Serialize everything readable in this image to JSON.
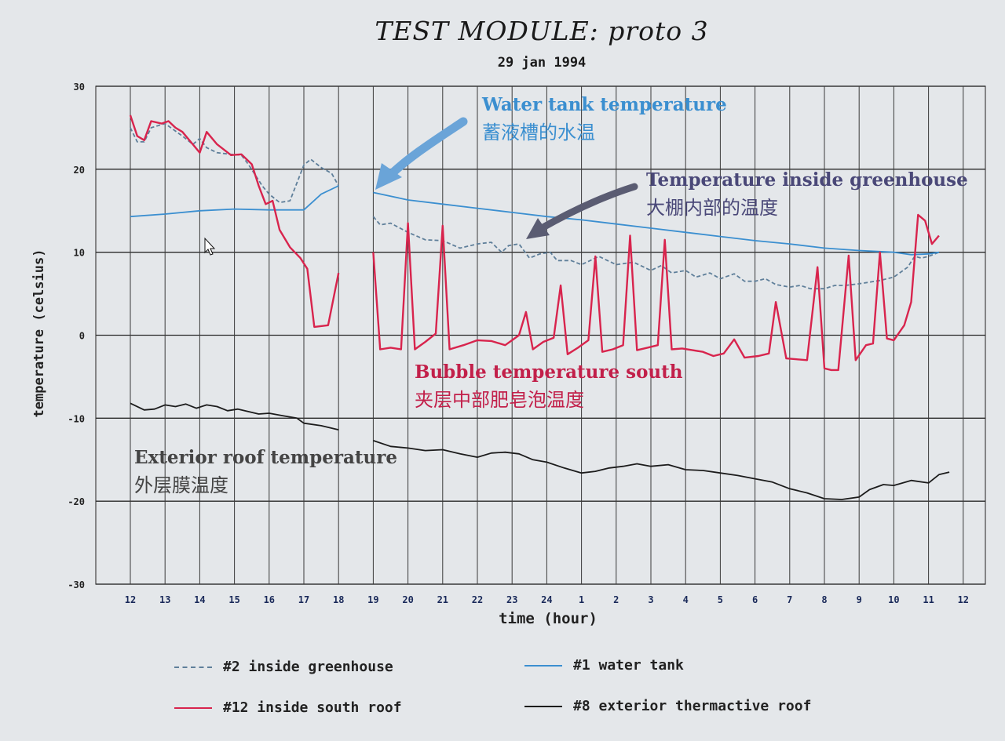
{
  "chart_data": {
    "type": "line",
    "title": "TEST MODULE: proto 3",
    "subtitle": "29 jan 1994",
    "xlabel": "time (hour)",
    "ylabel": "temperature (celsius)",
    "x_ticks": [
      "12",
      "13",
      "14",
      "15",
      "16",
      "17",
      "18",
      "19",
      "20",
      "21",
      "22",
      "23",
      "24",
      "1",
      "2",
      "3",
      "4",
      "5",
      "6",
      "7",
      "8",
      "9",
      "10",
      "11",
      "12"
    ],
    "y_ticks": [
      30,
      20,
      10,
      0,
      -10,
      -20,
      -30
    ],
    "ylim": [
      -30,
      30
    ],
    "grid": true,
    "legend_position": "bottom",
    "series": [
      {
        "name": "#2 inside greenhouse",
        "color": "#5f7f9a",
        "dash": true,
        "segments": [
          [
            [
              0,
              25
            ],
            [
              0.2,
              23.3
            ],
            [
              0.4,
              23.3
            ],
            [
              0.6,
              25
            ],
            [
              1,
              25.5
            ],
            [
              1.5,
              24
            ],
            [
              1.8,
              23
            ],
            [
              2,
              23.7
            ],
            [
              2.2,
              22.6
            ],
            [
              2.5,
              22
            ],
            [
              2.9,
              21.8
            ],
            [
              3.2,
              21.7
            ],
            [
              3.4,
              20.6
            ],
            [
              3.8,
              18
            ],
            [
              4,
              17
            ],
            [
              4.3,
              16
            ],
            [
              4.6,
              16.2
            ],
            [
              5,
              20.5
            ],
            [
              5.2,
              21.2
            ],
            [
              5.5,
              20.2
            ],
            [
              5.8,
              19.5
            ],
            [
              6,
              18
            ]
          ],
          [
            [
              7,
              14.3
            ],
            [
              7.2,
              13.3
            ],
            [
              7.5,
              13.5
            ],
            [
              8,
              12.4
            ],
            [
              8.5,
              11.5
            ],
            [
              9,
              11.4
            ],
            [
              9.5,
              10.5
            ],
            [
              10,
              11
            ],
            [
              10.4,
              11.2
            ],
            [
              10.7,
              10
            ],
            [
              10.9,
              10.8
            ],
            [
              11.2,
              11
            ],
            [
              11.5,
              9.3
            ],
            [
              11.8,
              9.8
            ],
            [
              12.1,
              10
            ],
            [
              12.3,
              9
            ],
            [
              12.7,
              9
            ],
            [
              13,
              8.5
            ],
            [
              13.5,
              9.5
            ],
            [
              14,
              8.5
            ],
            [
              14.5,
              8.8
            ],
            [
              15,
              7.8
            ],
            [
              15.3,
              8.4
            ],
            [
              15.6,
              7.5
            ],
            [
              16,
              7.8
            ],
            [
              16.3,
              7
            ],
            [
              16.7,
              7.5
            ],
            [
              17,
              6.8
            ],
            [
              17.4,
              7.4
            ],
            [
              17.7,
              6.5
            ],
            [
              18,
              6.5
            ],
            [
              18.3,
              6.8
            ],
            [
              18.6,
              6.1
            ],
            [
              19,
              5.8
            ],
            [
              19.3,
              6
            ],
            [
              19.6,
              5.6
            ],
            [
              20,
              5.6
            ],
            [
              20.3,
              6
            ],
            [
              20.6,
              6
            ],
            [
              21,
              6.2
            ],
            [
              21.3,
              6.4
            ],
            [
              21.6,
              6.6
            ],
            [
              22,
              7
            ],
            [
              22.4,
              8.2
            ],
            [
              22.6,
              9.5
            ],
            [
              22.8,
              9.3
            ],
            [
              23,
              9.5
            ],
            [
              23.3,
              10
            ]
          ]
        ]
      },
      {
        "name": "#1 water tank",
        "color": "#3b8fd0",
        "dash": false,
        "segments": [
          [
            [
              0,
              14.3
            ],
            [
              1,
              14.6
            ],
            [
              2,
              15
            ],
            [
              3,
              15.2
            ],
            [
              4,
              15.1
            ],
            [
              5,
              15.1
            ],
            [
              5.5,
              17
            ],
            [
              6,
              18
            ]
          ],
          [
            [
              7,
              17.2
            ],
            [
              8,
              16.3
            ],
            [
              9,
              15.8
            ],
            [
              10,
              15.3
            ],
            [
              11,
              14.8
            ],
            [
              12,
              14.3
            ],
            [
              13,
              13.9
            ],
            [
              14,
              13.4
            ],
            [
              15,
              12.9
            ],
            [
              16,
              12.4
            ],
            [
              17,
              11.9
            ],
            [
              18,
              11.4
            ],
            [
              19,
              11
            ],
            [
              20,
              10.5
            ],
            [
              21,
              10.2
            ],
            [
              22,
              10
            ],
            [
              22.5,
              9.7
            ],
            [
              23,
              9.8
            ],
            [
              23.3,
              10
            ]
          ]
        ]
      },
      {
        "name": "#12 inside south roof",
        "color": "#d8244d",
        "dash": false,
        "segments": [
          [
            [
              0,
              26.5
            ],
            [
              0.2,
              24
            ],
            [
              0.4,
              23.5
            ],
            [
              0.6,
              25.8
            ],
            [
              0.9,
              25.5
            ],
            [
              1.1,
              25.8
            ],
            [
              1.3,
              25
            ],
            [
              1.5,
              24.5
            ],
            [
              1.8,
              23
            ],
            [
              2,
              22
            ],
            [
              2.2,
              24.5
            ],
            [
              2.5,
              23
            ],
            [
              2.9,
              21.7
            ],
            [
              3.2,
              21.8
            ],
            [
              3.5,
              20.6
            ],
            [
              3.7,
              18
            ],
            [
              3.9,
              15.8
            ],
            [
              4.1,
              16.2
            ],
            [
              4.3,
              12.7
            ],
            [
              4.6,
              10.6
            ],
            [
              4.9,
              9.3
            ],
            [
              5.1,
              8
            ],
            [
              5.3,
              1
            ],
            [
              5.7,
              1.2
            ],
            [
              6,
              7.5
            ]
          ],
          [
            [
              7,
              10
            ],
            [
              7.2,
              -1.7
            ],
            [
              7.5,
              -1.5
            ],
            [
              7.8,
              -1.7
            ],
            [
              8,
              13.5
            ],
            [
              8.2,
              -1.7
            ],
            [
              8.5,
              -0.8
            ],
            [
              8.8,
              0.2
            ],
            [
              9,
              13.2
            ],
            [
              9.2,
              -1.7
            ],
            [
              9.6,
              -1.2
            ],
            [
              10,
              -0.6
            ],
            [
              10.4,
              -0.7
            ],
            [
              10.8,
              -1.2
            ],
            [
              11,
              -0.6
            ],
            [
              11.2,
              0
            ],
            [
              11.4,
              2.8
            ],
            [
              11.6,
              -1.7
            ],
            [
              11.9,
              -0.8
            ],
            [
              12.2,
              -0.3
            ],
            [
              12.4,
              6
            ],
            [
              12.6,
              -2.3
            ],
            [
              12.9,
              -1.5
            ],
            [
              13.2,
              -0.6
            ],
            [
              13.4,
              9.5
            ],
            [
              13.6,
              -2
            ],
            [
              13.9,
              -1.7
            ],
            [
              14.2,
              -1.2
            ],
            [
              14.4,
              12
            ],
            [
              14.6,
              -1.8
            ],
            [
              14.9,
              -1.5
            ],
            [
              15.2,
              -1.2
            ],
            [
              15.4,
              11.5
            ],
            [
              15.6,
              -1.7
            ],
            [
              15.9,
              -1.6
            ],
            [
              16.2,
              -1.8
            ],
            [
              16.5,
              -2
            ],
            [
              16.8,
              -2.5
            ],
            [
              17.1,
              -2.2
            ],
            [
              17.4,
              -0.5
            ],
            [
              17.7,
              -2.7
            ],
            [
              18.1,
              -2.5
            ],
            [
              18.4,
              -2.2
            ],
            [
              18.6,
              4
            ],
            [
              18.9,
              -2.8
            ],
            [
              19.2,
              -2.9
            ],
            [
              19.5,
              -3
            ],
            [
              19.8,
              8.2
            ],
            [
              20,
              -4
            ],
            [
              20.2,
              -4.2
            ],
            [
              20.4,
              -4.2
            ],
            [
              20.7,
              9.6
            ],
            [
              20.9,
              -3
            ],
            [
              21.2,
              -1.2
            ],
            [
              21.4,
              -1
            ],
            [
              21.6,
              10
            ],
            [
              21.8,
              -0.4
            ],
            [
              22,
              -0.6
            ],
            [
              22.3,
              1.2
            ],
            [
              22.5,
              4
            ],
            [
              22.7,
              14.5
            ],
            [
              22.9,
              13.8
            ],
            [
              23.1,
              11
            ],
            [
              23.3,
              12
            ]
          ]
        ]
      },
      {
        "name": "#8 exterior thermactive roof",
        "color": "#1c1c1c",
        "dash": false,
        "segments": [
          [
            [
              0,
              -8.2
            ],
            [
              0.4,
              -9
            ],
            [
              0.7,
              -8.9
            ],
            [
              1,
              -8.4
            ],
            [
              1.3,
              -8.6
            ],
            [
              1.6,
              -8.3
            ],
            [
              1.9,
              -8.8
            ],
            [
              2.2,
              -8.4
            ],
            [
              2.5,
              -8.6
            ],
            [
              2.8,
              -9.1
            ],
            [
              3.1,
              -8.9
            ],
            [
              3.4,
              -9.2
            ],
            [
              3.7,
              -9.5
            ],
            [
              4,
              -9.4
            ],
            [
              4.4,
              -9.7
            ],
            [
              4.8,
              -10
            ],
            [
              5,
              -10.6
            ],
            [
              5.5,
              -10.9
            ],
            [
              6,
              -11.4
            ]
          ],
          [
            [
              7,
              -12.7
            ],
            [
              7.5,
              -13.4
            ],
            [
              8,
              -13.6
            ],
            [
              8.5,
              -13.9
            ],
            [
              9,
              -13.8
            ],
            [
              9.5,
              -14.3
            ],
            [
              10,
              -14.7
            ],
            [
              10.4,
              -14.2
            ],
            [
              10.8,
              -14.1
            ],
            [
              11.2,
              -14.3
            ],
            [
              11.6,
              -15
            ],
            [
              12,
              -15.3
            ],
            [
              12.5,
              -16
            ],
            [
              13,
              -16.6
            ],
            [
              13.4,
              -16.4
            ],
            [
              13.8,
              -16
            ],
            [
              14.2,
              -15.8
            ],
            [
              14.6,
              -15.5
            ],
            [
              15,
              -15.8
            ],
            [
              15.5,
              -15.6
            ],
            [
              16,
              -16.2
            ],
            [
              16.5,
              -16.3
            ],
            [
              17,
              -16.6
            ],
            [
              17.5,
              -16.9
            ],
            [
              18,
              -17.3
            ],
            [
              18.5,
              -17.7
            ],
            [
              19,
              -18.5
            ],
            [
              19.5,
              -19
            ],
            [
              20,
              -19.7
            ],
            [
              20.5,
              -19.8
            ],
            [
              21,
              -19.5
            ],
            [
              21.3,
              -18.6
            ],
            [
              21.7,
              -18
            ],
            [
              22,
              -18.1
            ],
            [
              22.5,
              -17.5
            ],
            [
              23,
              -17.8
            ],
            [
              23.3,
              -16.8
            ],
            [
              23.6,
              -16.5
            ]
          ]
        ]
      }
    ]
  },
  "legend": [
    {
      "label": "#2 inside greenhouse",
      "color": "#5f7f9a",
      "style": "dashed"
    },
    {
      "label": "#1 water tank",
      "color": "#3b8fd0",
      "style": "solid"
    },
    {
      "label": "#12 inside south roof",
      "color": "#d8244d",
      "style": "solid"
    },
    {
      "label": "#8 exterior thermactive roof",
      "color": "#1c1c1c",
      "style": "solid"
    }
  ],
  "annotations": {
    "water_tank": {
      "en": "Water tank temperature",
      "zh": "蓄液槽的水温",
      "color": "#3b8fd0"
    },
    "greenhouse": {
      "en": "Temperature inside greenhouse",
      "zh": "大棚内部的温度",
      "color": "#4a4878"
    },
    "bubble": {
      "en": "Bubble temperature south",
      "zh": "夹层中部肥皂泡温度",
      "color": "#c2204a"
    },
    "roof": {
      "en": "Exterior roof temperature",
      "zh": "外层膜温度",
      "color": "#444444"
    }
  }
}
